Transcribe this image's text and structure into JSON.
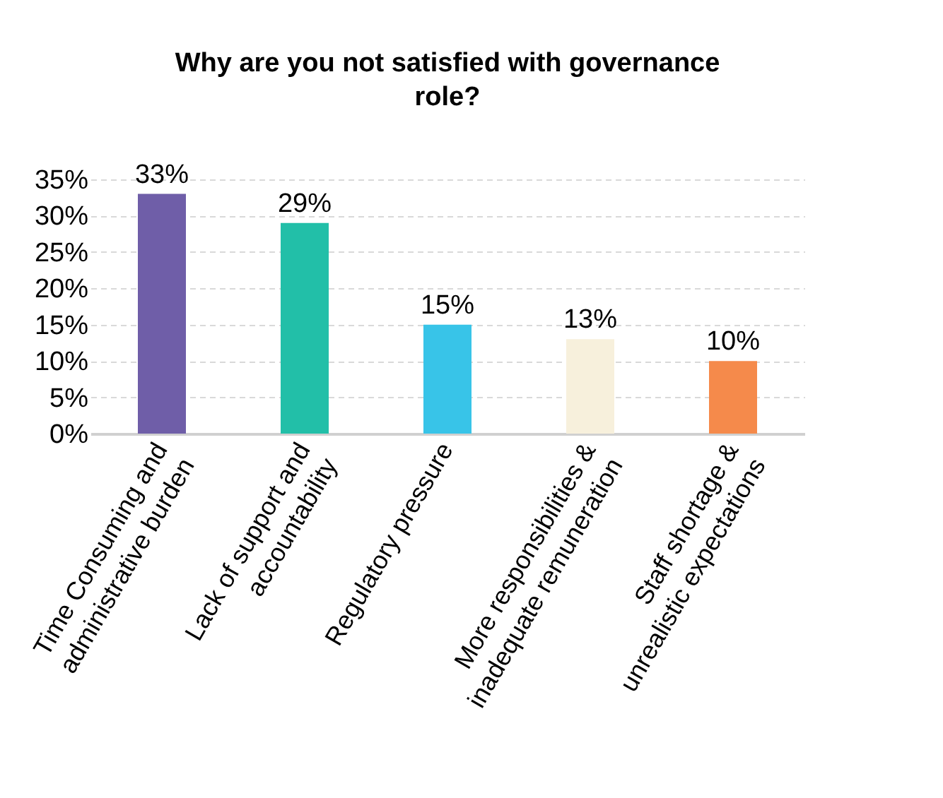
{
  "chart_data": {
    "type": "bar",
    "title": "Why are you not satisfied with governance\nrole?",
    "categories": [
      "Time Consuming and\nadministrative burden",
      "Lack of support and\naccountability",
      "Regulatory pressure",
      "More responsibilities &\ninadequate remuneration",
      "Staff shortage &\nunrealistic expectations"
    ],
    "values": [
      33,
      29,
      15,
      13,
      10
    ],
    "colors": [
      "#6f5ea8",
      "#22bfa8",
      "#38c4e8",
      "#f7f0dc",
      "#f58a4b"
    ],
    "value_labels": [
      "33%",
      "29%",
      "15%",
      "13%",
      "10%"
    ],
    "ylim": [
      0,
      35
    ],
    "yticks": [
      {
        "value": 0,
        "label": "0%"
      },
      {
        "value": 5,
        "label": "5%"
      },
      {
        "value": 10,
        "label": "10%"
      },
      {
        "value": 15,
        "label": "15%"
      },
      {
        "value": 20,
        "label": "20%"
      },
      {
        "value": 25,
        "label": "25%"
      },
      {
        "value": 30,
        "label": "30%"
      },
      {
        "value": 35,
        "label": "35%"
      }
    ],
    "grid": "y"
  }
}
